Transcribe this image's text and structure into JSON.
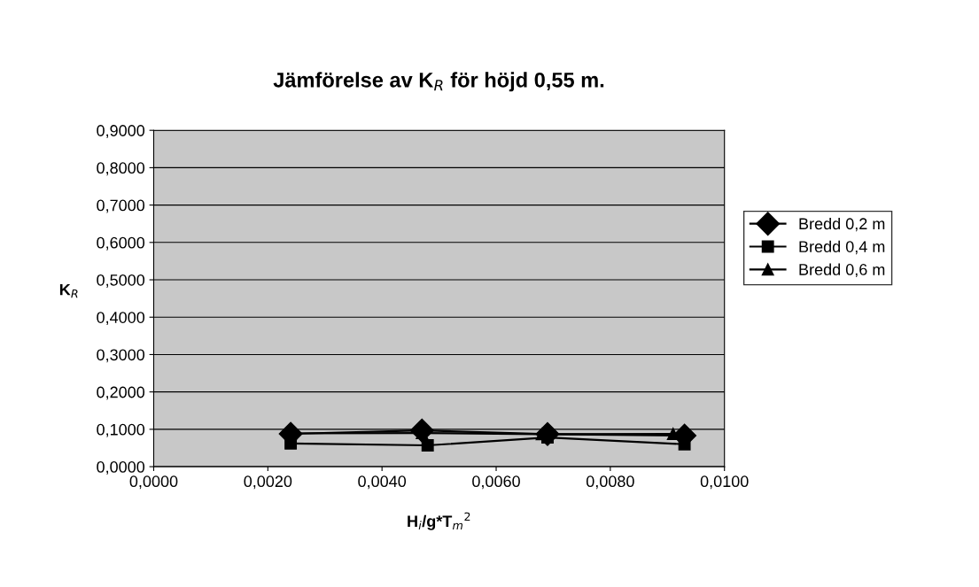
{
  "chart_data": {
    "type": "line",
    "title": "Jämförelse av K$_{R}$ för höjd 0,55 m.",
    "xlabel": "H$_{i}$/g*T$_{m}$$^{2}$",
    "ylabel": "K$_{R}$",
    "series": [
      {
        "name": "Bredd 0,2 m",
        "color": "#000000",
        "marker": "diamond",
        "x": [
          0.0024,
          0.0047,
          0.0069,
          0.0093
        ],
        "values": [
          0.088,
          0.097,
          0.087,
          0.083
        ]
      },
      {
        "name": "Bredd 0,4 m",
        "color": "#000000",
        "marker": "square",
        "x": [
          0.0024,
          0.0048,
          0.0069,
          0.0093
        ],
        "values": [
          0.062,
          0.057,
          0.078,
          0.06
        ]
      },
      {
        "name": "Bredd 0,6 m",
        "color": "#000000",
        "marker": "triangle",
        "x": [
          0.0024,
          0.0047,
          0.0068,
          0.0091
        ],
        "values": [
          0.089,
          0.09,
          0.087,
          0.088
        ]
      }
    ],
    "xlim": [
      0,
      0.01
    ],
    "xticks": [
      {
        "value": 0,
        "label": "0,0000"
      },
      {
        "value": 0.002,
        "label": "0,0020"
      },
      {
        "value": 0.004,
        "label": "0,0040"
      },
      {
        "value": 0.006,
        "label": "0,0060"
      },
      {
        "value": 0.008,
        "label": "0,0080"
      },
      {
        "value": 0.01,
        "label": "0,0100"
      }
    ],
    "ylim": [
      0,
      0.9
    ],
    "yticks": [
      {
        "value": 0,
        "label": "0,0000"
      },
      {
        "value": 0.1,
        "label": "0,1000"
      },
      {
        "value": 0.2,
        "label": "0,2000"
      },
      {
        "value": 0.3,
        "label": "0,3000"
      },
      {
        "value": 0.4,
        "label": "0,4000"
      },
      {
        "value": 0.5,
        "label": "0,5000"
      },
      {
        "value": 0.6,
        "label": "0,6000"
      },
      {
        "value": 0.7,
        "label": "0,7000"
      },
      {
        "value": 0.8,
        "label": "0,8000"
      },
      {
        "value": 0.9,
        "label": "0,9000"
      }
    ],
    "grid": "y",
    "legend": "right",
    "line_style": "solid"
  }
}
